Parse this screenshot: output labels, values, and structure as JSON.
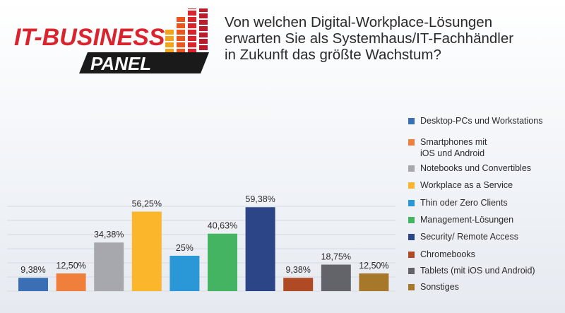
{
  "logo": {
    "line1": "IT-BUSINESS",
    "line2": "PANEL",
    "accent_color": "#d9232d",
    "bar_colors": [
      "#f2a51c",
      "#e9561f",
      "#d9232d",
      "#b91c2a"
    ]
  },
  "header": {
    "title_lines": [
      "Von welchen Digital-Workplace-Lösungen",
      "erwarten Sie als Systemhaus/IT-Fachhändler",
      "in Zukunft das größte Wachstum?"
    ]
  },
  "chart_data": {
    "type": "bar",
    "title": "Von welchen Digital-Workplace-Lösungen erwarten Sie als Systemhaus/IT-Fachhändler in Zukunft das größte Wachstum?",
    "categories": [
      "Desktop-PCs und Workstations",
      "Smartphones mit iOS und Android",
      "Notebooks und Convertibles",
      "Workplace as a Service",
      "Thin oder Zero Clients",
      "Management-Lösungen",
      "Security/ Remote Access",
      "Chromebooks",
      "Tablets (mit iOS und Android)",
      "Sonstiges"
    ],
    "values": [
      9.38,
      12.5,
      34.38,
      56.25,
      25,
      40.63,
      59.38,
      9.38,
      18.75,
      12.5
    ],
    "value_labels": [
      "9,38%",
      "12,50%",
      "34,38%",
      "56,25%",
      "25%",
      "40,63%",
      "59,38%",
      "9,38%",
      "18,75%",
      "12,50%"
    ],
    "legend_labels": [
      [
        "Desktop-PCs und Workstations"
      ],
      [
        "Smartphones mit",
        "iOS und Android"
      ],
      [
        "Notebooks und Convertibles"
      ],
      [
        "Workplace as a Service"
      ],
      [
        "Thin oder Zero Clients"
      ],
      [
        "Management-Lösungen"
      ],
      [
        "Security/ Remote Access"
      ],
      [
        "Chromebooks"
      ],
      [
        "Tablets (mit iOS und Android)"
      ],
      [
        "Sonstiges"
      ]
    ],
    "colors": [
      "#3a6fb5",
      "#f07f3c",
      "#a6a8ad",
      "#fbb62b",
      "#2a97d6",
      "#44b463",
      "#2b4586",
      "#b04a24",
      "#626469",
      "#a8782a"
    ],
    "ylim": [
      0,
      65
    ],
    "grid": true,
    "legend_position": "right"
  }
}
